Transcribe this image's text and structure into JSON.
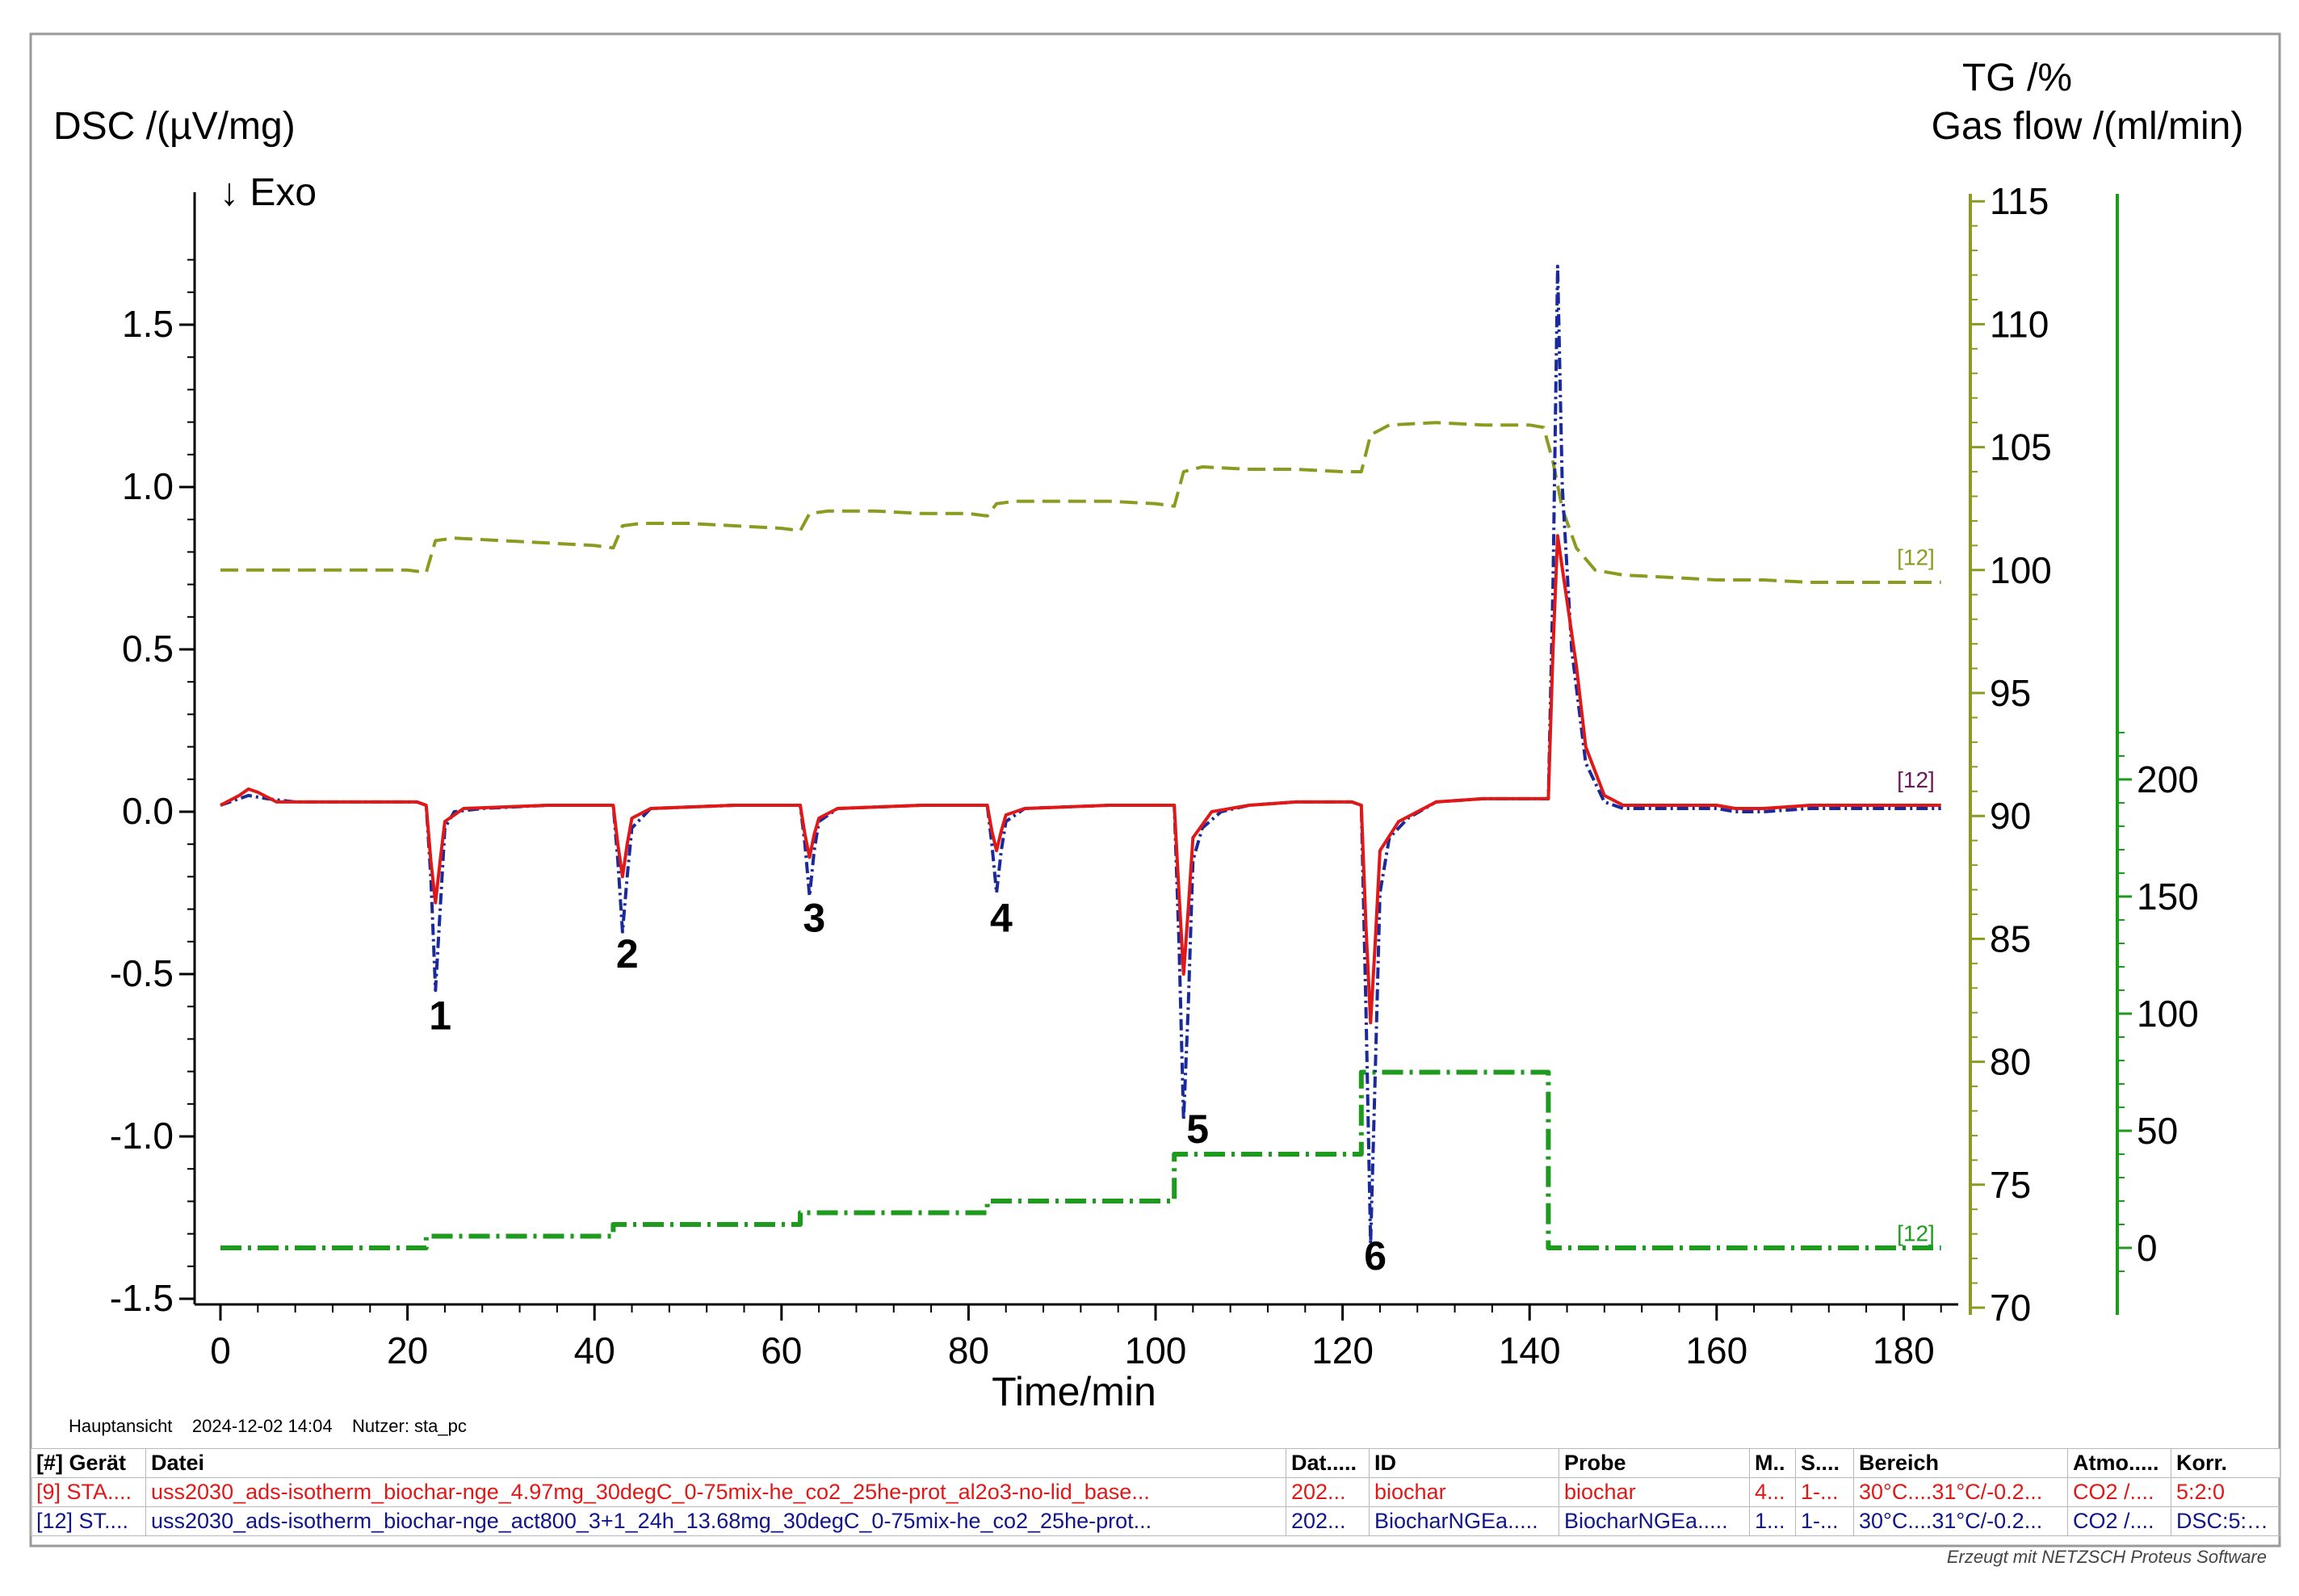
{
  "chart_data": {
    "type": "line",
    "x_axis": {
      "label": "Time/min",
      "range": [
        0,
        185
      ],
      "ticks": [
        0,
        20,
        40,
        60,
        80,
        100,
        120,
        140,
        160,
        180
      ]
    },
    "y_axis_left": {
      "label": "DSC /(µV/mg)",
      "direction_note": "↓ Exo",
      "range": [
        -1.5,
        1.8
      ],
      "ticks": [
        -1.5,
        -1.0,
        -0.5,
        0.0,
        0.5,
        1.0,
        1.5
      ],
      "tick_labels": [
        "-1.5",
        "-1.0",
        "-0.5",
        "0.0",
        "0.5",
        "1.0",
        "1.5"
      ]
    },
    "y_axis_tg": {
      "label": "TG /%",
      "range": [
        70,
        115
      ],
      "ticks": [
        70,
        75,
        80,
        85,
        90,
        95,
        100,
        105,
        110,
        115
      ]
    },
    "y_axis_flow": {
      "label": "Gas flow /(ml/min)",
      "range": [
        -15,
        225
      ],
      "ticks": [
        0,
        50,
        100,
        150,
        200
      ]
    },
    "series": [
      {
        "axis": "tg",
        "color": "#8c9a20",
        "style": "dashed",
        "points": [
          [
            0,
            100
          ],
          [
            5,
            100
          ],
          [
            10,
            100
          ],
          [
            15,
            100
          ],
          [
            20,
            100
          ],
          [
            22,
            99.9
          ],
          [
            23,
            101.2
          ],
          [
            25,
            101.3
          ],
          [
            30,
            101.2
          ],
          [
            35,
            101.1
          ],
          [
            40,
            101.0
          ],
          [
            42,
            100.9
          ],
          [
            43,
            101.8
          ],
          [
            45,
            101.9
          ],
          [
            50,
            101.9
          ],
          [
            55,
            101.8
          ],
          [
            60,
            101.7
          ],
          [
            62,
            101.6
          ],
          [
            63,
            102.3
          ],
          [
            65,
            102.4
          ],
          [
            70,
            102.4
          ],
          [
            75,
            102.3
          ],
          [
            80,
            102.3
          ],
          [
            82,
            102.2
          ],
          [
            83,
            102.7
          ],
          [
            85,
            102.8
          ],
          [
            90,
            102.8
          ],
          [
            95,
            102.8
          ],
          [
            100,
            102.7
          ],
          [
            102,
            102.6
          ],
          [
            103,
            104.0
          ],
          [
            105,
            104.2
          ],
          [
            110,
            104.1
          ],
          [
            115,
            104.1
          ],
          [
            120,
            104.0
          ],
          [
            122,
            104.0
          ],
          [
            123,
            105.5
          ],
          [
            125,
            105.9
          ],
          [
            130,
            106.0
          ],
          [
            135,
            105.9
          ],
          [
            140,
            105.9
          ],
          [
            141.5,
            105.8
          ],
          [
            142.5,
            104.4
          ],
          [
            143.5,
            102.5
          ],
          [
            145,
            100.9
          ],
          [
            147,
            100.0
          ],
          [
            150,
            99.8
          ],
          [
            155,
            99.7
          ],
          [
            160,
            99.6
          ],
          [
            165,
            99.6
          ],
          [
            170,
            99.5
          ],
          [
            175,
            99.5
          ],
          [
            180,
            99.5
          ],
          [
            184,
            99.5
          ]
        ]
      },
      {
        "axis": "flow",
        "color": "#1e9a1e",
        "style": "dashdot",
        "points": [
          [
            0,
            0
          ],
          [
            22,
            0
          ],
          [
            22,
            5
          ],
          [
            42,
            5
          ],
          [
            42,
            10
          ],
          [
            62,
            10
          ],
          [
            62,
            15
          ],
          [
            82,
            15
          ],
          [
            82,
            20
          ],
          [
            102,
            20
          ],
          [
            102,
            40
          ],
          [
            122,
            40
          ],
          [
            122,
            75
          ],
          [
            142,
            75
          ],
          [
            142,
            0
          ],
          [
            184,
            0
          ]
        ]
      },
      {
        "axis": "dsc",
        "color": "#1a2a9a",
        "style": "dashdot",
        "points": [
          [
            0,
            0.02
          ],
          [
            2,
            0.04
          ],
          [
            3,
            0.05
          ],
          [
            5,
            0.04
          ],
          [
            8,
            0.03
          ],
          [
            15,
            0.03
          ],
          [
            21,
            0.03
          ],
          [
            22,
            0.02
          ],
          [
            22.5,
            -0.2
          ],
          [
            23,
            -0.55
          ],
          [
            23.5,
            -0.3
          ],
          [
            24,
            -0.05
          ],
          [
            25,
            0.0
          ],
          [
            28,
            0.01
          ],
          [
            35,
            0.02
          ],
          [
            41,
            0.02
          ],
          [
            42,
            0.02
          ],
          [
            42.5,
            -0.15
          ],
          [
            43,
            -0.37
          ],
          [
            43.5,
            -0.2
          ],
          [
            44,
            -0.05
          ],
          [
            46,
            0.01
          ],
          [
            55,
            0.02
          ],
          [
            61,
            0.02
          ],
          [
            62,
            0.02
          ],
          [
            62.5,
            -0.1
          ],
          [
            63,
            -0.26
          ],
          [
            63.5,
            -0.12
          ],
          [
            64,
            -0.03
          ],
          [
            66,
            0.01
          ],
          [
            75,
            0.02
          ],
          [
            81,
            0.02
          ],
          [
            82,
            0.02
          ],
          [
            82.5,
            -0.1
          ],
          [
            83,
            -0.25
          ],
          [
            83.5,
            -0.12
          ],
          [
            84,
            -0.03
          ],
          [
            86,
            0.01
          ],
          [
            95,
            0.02
          ],
          [
            101,
            0.02
          ],
          [
            102,
            0.02
          ],
          [
            102.5,
            -0.4
          ],
          [
            103,
            -0.95
          ],
          [
            103.5,
            -0.6
          ],
          [
            104,
            -0.15
          ],
          [
            105,
            -0.05
          ],
          [
            107,
            0.0
          ],
          [
            110,
            0.02
          ],
          [
            115,
            0.03
          ],
          [
            121,
            0.03
          ],
          [
            122,
            0.02
          ],
          [
            122.5,
            -0.6
          ],
          [
            123,
            -1.33
          ],
          [
            123.5,
            -0.8
          ],
          [
            124,
            -0.25
          ],
          [
            125,
            -0.08
          ],
          [
            127,
            -0.02
          ],
          [
            130,
            0.03
          ],
          [
            135,
            0.04
          ],
          [
            140,
            0.04
          ],
          [
            142,
            0.04
          ],
          [
            142.5,
            0.7
          ],
          [
            143,
            1.68
          ],
          [
            143.5,
            1.0
          ],
          [
            144.5,
            0.5
          ],
          [
            146,
            0.15
          ],
          [
            148,
            0.03
          ],
          [
            150,
            0.01
          ],
          [
            155,
            0.01
          ],
          [
            160,
            0.01
          ],
          [
            162,
            0.0
          ],
          [
            165,
            0.0
          ],
          [
            170,
            0.01
          ],
          [
            175,
            0.01
          ],
          [
            180,
            0.01
          ],
          [
            184,
            0.01
          ]
        ]
      },
      {
        "axis": "dsc",
        "color": "#e01818",
        "style": "solid",
        "points": [
          [
            0,
            0.02
          ],
          [
            2,
            0.05
          ],
          [
            3,
            0.07
          ],
          [
            4,
            0.06
          ],
          [
            6,
            0.03
          ],
          [
            15,
            0.03
          ],
          [
            21,
            0.03
          ],
          [
            22,
            0.02
          ],
          [
            22.5,
            -0.15
          ],
          [
            23,
            -0.28
          ],
          [
            23.5,
            -0.15
          ],
          [
            24,
            -0.03
          ],
          [
            26,
            0.01
          ],
          [
            35,
            0.02
          ],
          [
            41,
            0.02
          ],
          [
            42,
            0.02
          ],
          [
            42.5,
            -0.1
          ],
          [
            43,
            -0.2
          ],
          [
            43.5,
            -0.1
          ],
          [
            44,
            -0.02
          ],
          [
            46,
            0.01
          ],
          [
            55,
            0.02
          ],
          [
            61,
            0.02
          ],
          [
            62,
            0.02
          ],
          [
            62.5,
            -0.07
          ],
          [
            63,
            -0.14
          ],
          [
            63.5,
            -0.07
          ],
          [
            64,
            -0.02
          ],
          [
            66,
            0.01
          ],
          [
            75,
            0.02
          ],
          [
            81,
            0.02
          ],
          [
            82,
            0.02
          ],
          [
            82.5,
            -0.06
          ],
          [
            83,
            -0.12
          ],
          [
            83.5,
            -0.06
          ],
          [
            84,
            -0.01
          ],
          [
            86,
            0.01
          ],
          [
            95,
            0.02
          ],
          [
            101,
            0.02
          ],
          [
            102,
            0.02
          ],
          [
            102.5,
            -0.25
          ],
          [
            103,
            -0.5
          ],
          [
            103.5,
            -0.3
          ],
          [
            104,
            -0.08
          ],
          [
            106,
            0.0
          ],
          [
            110,
            0.02
          ],
          [
            115,
            0.03
          ],
          [
            121,
            0.03
          ],
          [
            122,
            0.02
          ],
          [
            122.5,
            -0.35
          ],
          [
            123,
            -0.65
          ],
          [
            123.5,
            -0.4
          ],
          [
            124,
            -0.12
          ],
          [
            126,
            -0.03
          ],
          [
            130,
            0.03
          ],
          [
            135,
            0.04
          ],
          [
            140,
            0.04
          ],
          [
            142,
            0.04
          ],
          [
            142.5,
            0.5
          ],
          [
            143,
            0.85
          ],
          [
            144,
            0.65
          ],
          [
            145,
            0.45
          ],
          [
            146,
            0.2
          ],
          [
            148,
            0.05
          ],
          [
            150,
            0.02
          ],
          [
            155,
            0.02
          ],
          [
            160,
            0.02
          ],
          [
            162,
            0.01
          ],
          [
            165,
            0.01
          ],
          [
            170,
            0.02
          ],
          [
            175,
            0.02
          ],
          [
            180,
            0.02
          ],
          [
            184,
            0.02
          ]
        ]
      }
    ],
    "peak_labels": [
      {
        "text": "1",
        "x": 23.5,
        "y": -0.67
      },
      {
        "text": "2",
        "x": 43.5,
        "y": -0.48
      },
      {
        "text": "3",
        "x": 63.5,
        "y": -0.37
      },
      {
        "text": "4",
        "x": 83.5,
        "y": -0.37
      },
      {
        "text": "5",
        "x": 104.5,
        "y": -1.02
      },
      {
        "text": "6",
        "x": 123.5,
        "y": -1.41
      }
    ],
    "curve_tags": [
      {
        "text": "[12]",
        "x": 181.3,
        "axis": "tg",
        "y": 100.2,
        "color": "#8c9a20"
      },
      {
        "text": "[12]",
        "x": 181.3,
        "axis": "dsc",
        "y": 0.075,
        "color": "#6a1a5a"
      },
      {
        "text": "[12]",
        "x": 181.3,
        "axis": "flow",
        "y": 3,
        "color": "#1e9a1e"
      }
    ]
  },
  "info_line": {
    "view": "Hauptansicht",
    "datetime": "2024-12-02 14:04",
    "user": "Nutzer: sta_pc"
  },
  "legend_table": {
    "headers": [
      "[#] Gerät",
      "Datei",
      "Dat.....",
      "ID",
      "Probe",
      "M..",
      "S....",
      "Bereich",
      "Atmo.....",
      "Korr."
    ],
    "rows": [
      [
        "[9] STA....",
        "uss2030_ads-isotherm_biochar-nge_4.97mg_30degC_0-75mix-he_co2_25he-prot_al2o3-no-lid_base...",
        "202...",
        "biochar",
        "biochar",
        "4...",
        "1-...",
        "30°C....31°C/-0.2...",
        "CO2 /....",
        "5:2:0"
      ],
      [
        "[12] ST....",
        "uss2030_ads-isotherm_biochar-nge_act800_3+1_24h_13.68mg_30degC_0-75mix-he_co2_25he-prot...",
        "202...",
        "BiocharNGEa.....",
        "BiocharNGEa.....",
        "1...",
        "1-...",
        "30°C....31°C/-0.2...",
        "CO2 /....",
        "DSC:5:2:...."
      ]
    ]
  },
  "footer_text": "Erzeugt mit NETZSCH Proteus Software"
}
